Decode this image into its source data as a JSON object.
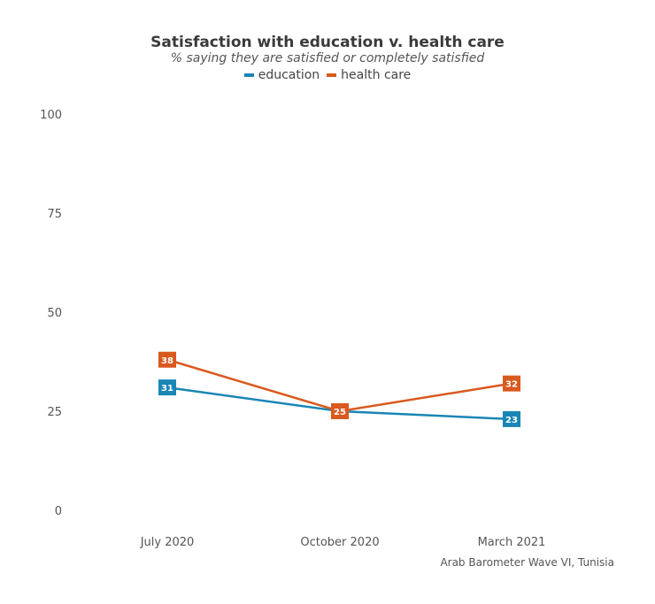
{
  "title": "Satisfaction with education v. health care",
  "subtitle": "% saying they are satisfied or completely satisfied",
  "caption": "Arab Barometer Wave VI, Tunisia",
  "colors": {
    "education": "#1a86b5",
    "health_care": "#d9591e"
  },
  "chart_data": {
    "type": "line",
    "title": "Satisfaction with education v. health care",
    "subtitle": "% saying they are satisfied or completely satisfied",
    "x": [
      "July 2020",
      "October 2020",
      "March 2021"
    ],
    "ylim": [
      0,
      100
    ],
    "yticks": [
      0,
      25,
      50,
      75,
      100
    ],
    "grid": false,
    "legend": "top",
    "series": [
      {
        "name": "education",
        "values": [
          31,
          25,
          23
        ],
        "color": "#1a86b5"
      },
      {
        "name": "health care",
        "values": [
          38,
          25,
          32
        ],
        "color": "#d9591e"
      }
    ]
  }
}
